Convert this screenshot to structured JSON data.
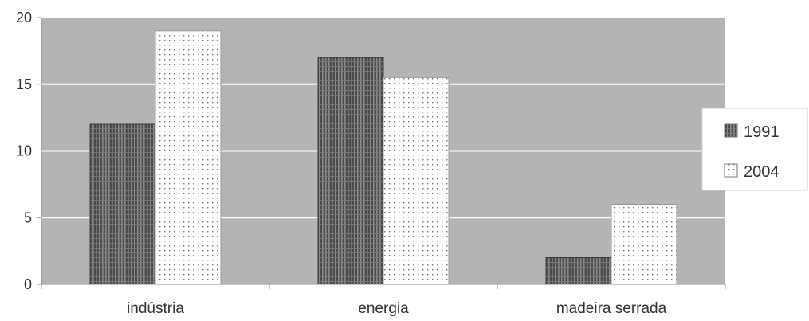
{
  "chart_data": {
    "type": "bar",
    "title": "",
    "xlabel": "",
    "ylabel": "",
    "categories": [
      "indústria",
      "energia",
      "madeira serrada"
    ],
    "series": [
      {
        "name": "1991",
        "values": [
          12,
          17,
          2
        ],
        "pattern": "vertical-stripes",
        "color": "#555555"
      },
      {
        "name": "2004",
        "values": [
          19,
          15.5,
          6
        ],
        "pattern": "dots",
        "color": "#ffffff"
      }
    ],
    "ylim": [
      0,
      20
    ],
    "yticks": [
      "0",
      "5",
      "10",
      "15",
      "20"
    ],
    "grid": true,
    "plot_background": "#b4b4b6",
    "gridline_color": "#ffffff",
    "legend_position": "right"
  }
}
